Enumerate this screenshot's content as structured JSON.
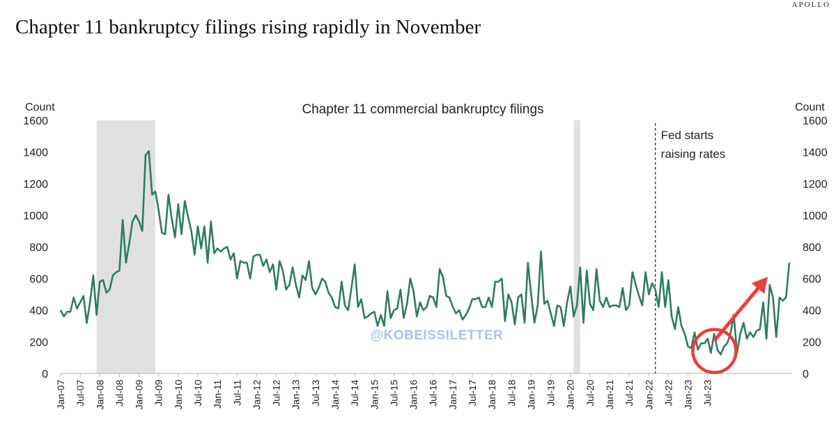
{
  "brand": "APOLLO",
  "title": "Chapter 11 bankruptcy filings rising rapidly in November",
  "watermark": "@KOBEISSILETTER",
  "colors": {
    "line": "#2e7b64",
    "recession": "#e0e0e0",
    "arrow": "#e8403a",
    "watermark": "#a9c3ee"
  },
  "chart_data": {
    "type": "line",
    "title": "Chapter 11 commercial bankruptcy filings",
    "ylabel_left": "Count",
    "ylabel_right": "Count",
    "ylim": [
      0,
      1600
    ],
    "yticks": [
      0,
      200,
      400,
      600,
      800,
      1000,
      1200,
      1400,
      1600
    ],
    "x_start": "Jan-07",
    "x_frequency": "monthly",
    "xticks": [
      "Jan-07",
      "Jul-07",
      "Jan-08",
      "Jul-08",
      "Jan-09",
      "Jul-09",
      "Jan-10",
      "Jul-10",
      "Jan-11",
      "Jul-11",
      "Jan-12",
      "Jul-12",
      "Jan-13",
      "Jul-13",
      "Jan-14",
      "Jul-14",
      "Jan-15",
      "Jul-15",
      "Jan-16",
      "Jul-16",
      "Jan-17",
      "Jul-17",
      "Jan-18",
      "Jul-18",
      "Jan-19",
      "Jul-19",
      "Jan-20",
      "Jul-20",
      "Jan-21",
      "Jul-21",
      "Jan-22",
      "Jul-22",
      "Jan-23",
      "Jul-23"
    ],
    "recession_shading": [
      {
        "start": "Dec-07",
        "end": "Jun-09"
      },
      {
        "start": "Feb-20",
        "end": "Apr-20"
      }
    ],
    "annotation": {
      "text_lines": [
        "Fed starts",
        "raising rates"
      ],
      "at": "Mar-22"
    },
    "highlight": {
      "at": "Nov-23"
    },
    "series": [
      {
        "values": [
          400,
          360,
          390,
          390,
          480,
          410,
          450,
          490,
          320,
          450,
          620,
          370,
          580,
          590,
          510,
          530,
          620,
          640,
          650,
          970,
          700,
          820,
          960,
          1000,
          960,
          900,
          1380,
          1405,
          1130,
          1150,
          1030,
          890,
          880,
          1130,
          980,
          860,
          1070,
          880,
          1090,
          990,
          900,
          750,
          930,
          790,
          930,
          700,
          960,
          760,
          790,
          770,
          790,
          800,
          720,
          760,
          600,
          710,
          700,
          700,
          600,
          740,
          750,
          750,
          680,
          720,
          640,
          690,
          530,
          710,
          650,
          530,
          560,
          670,
          560,
          480,
          620,
          590,
          710,
          540,
          500,
          540,
          600,
          580,
          510,
          480,
          420,
          410,
          580,
          430,
          400,
          540,
          690,
          420,
          470,
          350,
          360,
          380,
          390,
          300,
          370,
          300,
          520,
          350,
          400,
          410,
          530,
          350,
          440,
          600,
          520,
          360,
          450,
          400,
          420,
          490,
          480,
          420,
          660,
          610,
          490,
          480,
          420,
          380,
          400,
          340,
          370,
          410,
          470,
          470,
          480,
          420,
          420,
          480,
          420,
          580,
          580,
          600,
          330,
          500,
          450,
          310,
          480,
          500,
          320,
          700,
          500,
          320,
          430,
          770,
          440,
          460,
          380,
          300,
          430,
          420,
          300,
          450,
          550,
          360,
          430,
          670,
          320,
          650,
          440,
          400,
          660,
          460,
          420,
          480,
          420,
          430,
          430,
          420,
          540,
          400,
          430,
          640,
          560,
          490,
          430,
          640,
          500,
          570,
          530,
          420,
          640,
          420,
          590,
          360,
          280,
          420,
          300,
          250,
          170,
          160,
          260,
          150,
          190,
          190,
          220,
          130,
          250,
          150,
          120,
          170,
          190,
          250,
          370,
          130,
          250,
          320,
          220,
          260,
          230,
          270,
          280,
          450,
          220,
          560,
          480,
          230,
          480,
          460,
          480,
          700
        ]
      }
    ]
  }
}
